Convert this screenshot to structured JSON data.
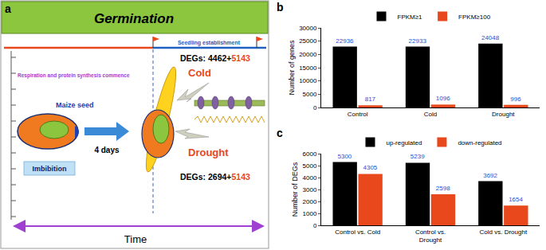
{
  "diagram": {
    "panel": "a",
    "header": "Germination",
    "stage_label": "Seedling establishment",
    "phase_note": "Respiration and protein synthesis commence",
    "seed_label": "Maize seed",
    "imbibition": "Imbibition",
    "duration": "4 days",
    "treatments": [
      {
        "name": "Cold",
        "degs": [
          "DEGs: 4462+",
          "5143"
        ]
      },
      {
        "name": "Drought",
        "degs": [
          "DEGs: 2694+",
          "5143"
        ]
      }
    ],
    "axis_label": "Time"
  },
  "chart_data": [
    {
      "panel": "b",
      "type": "bar",
      "categories": [
        "Control",
        "Cold",
        "Drought"
      ],
      "series": [
        {
          "name": "FPKM≥1",
          "color": "#000000",
          "values": [
            22936,
            22933,
            24048
          ]
        },
        {
          "name": "FPKM≥100",
          "color": "#e8481c",
          "values": [
            817,
            1096,
            996
          ]
        }
      ],
      "ylabel": "Number of genes",
      "ylim": [
        0,
        30000
      ],
      "yticks": [
        0,
        5000,
        10000,
        15000,
        20000,
        25000,
        30000
      ],
      "data_labels": true,
      "legend": "top",
      "grid": false
    },
    {
      "panel": "c",
      "type": "bar",
      "categories": [
        "Control vs. Cold",
        "Control vs. Drought",
        "Cold vs. Drought"
      ],
      "series": [
        {
          "name": "up-regulated",
          "color": "#000000",
          "values": [
            5300,
            5239,
            3692
          ]
        },
        {
          "name": "down-regulated",
          "color": "#e8481c",
          "values": [
            4305,
            2598,
            1654
          ]
        }
      ],
      "ylabel": "Number of DEGs",
      "ylim": [
        0,
        6000
      ],
      "yticks": [
        0,
        1000,
        2000,
        3000,
        4000,
        5000,
        6000
      ],
      "data_labels": true,
      "legend": "top",
      "grid": false
    }
  ]
}
